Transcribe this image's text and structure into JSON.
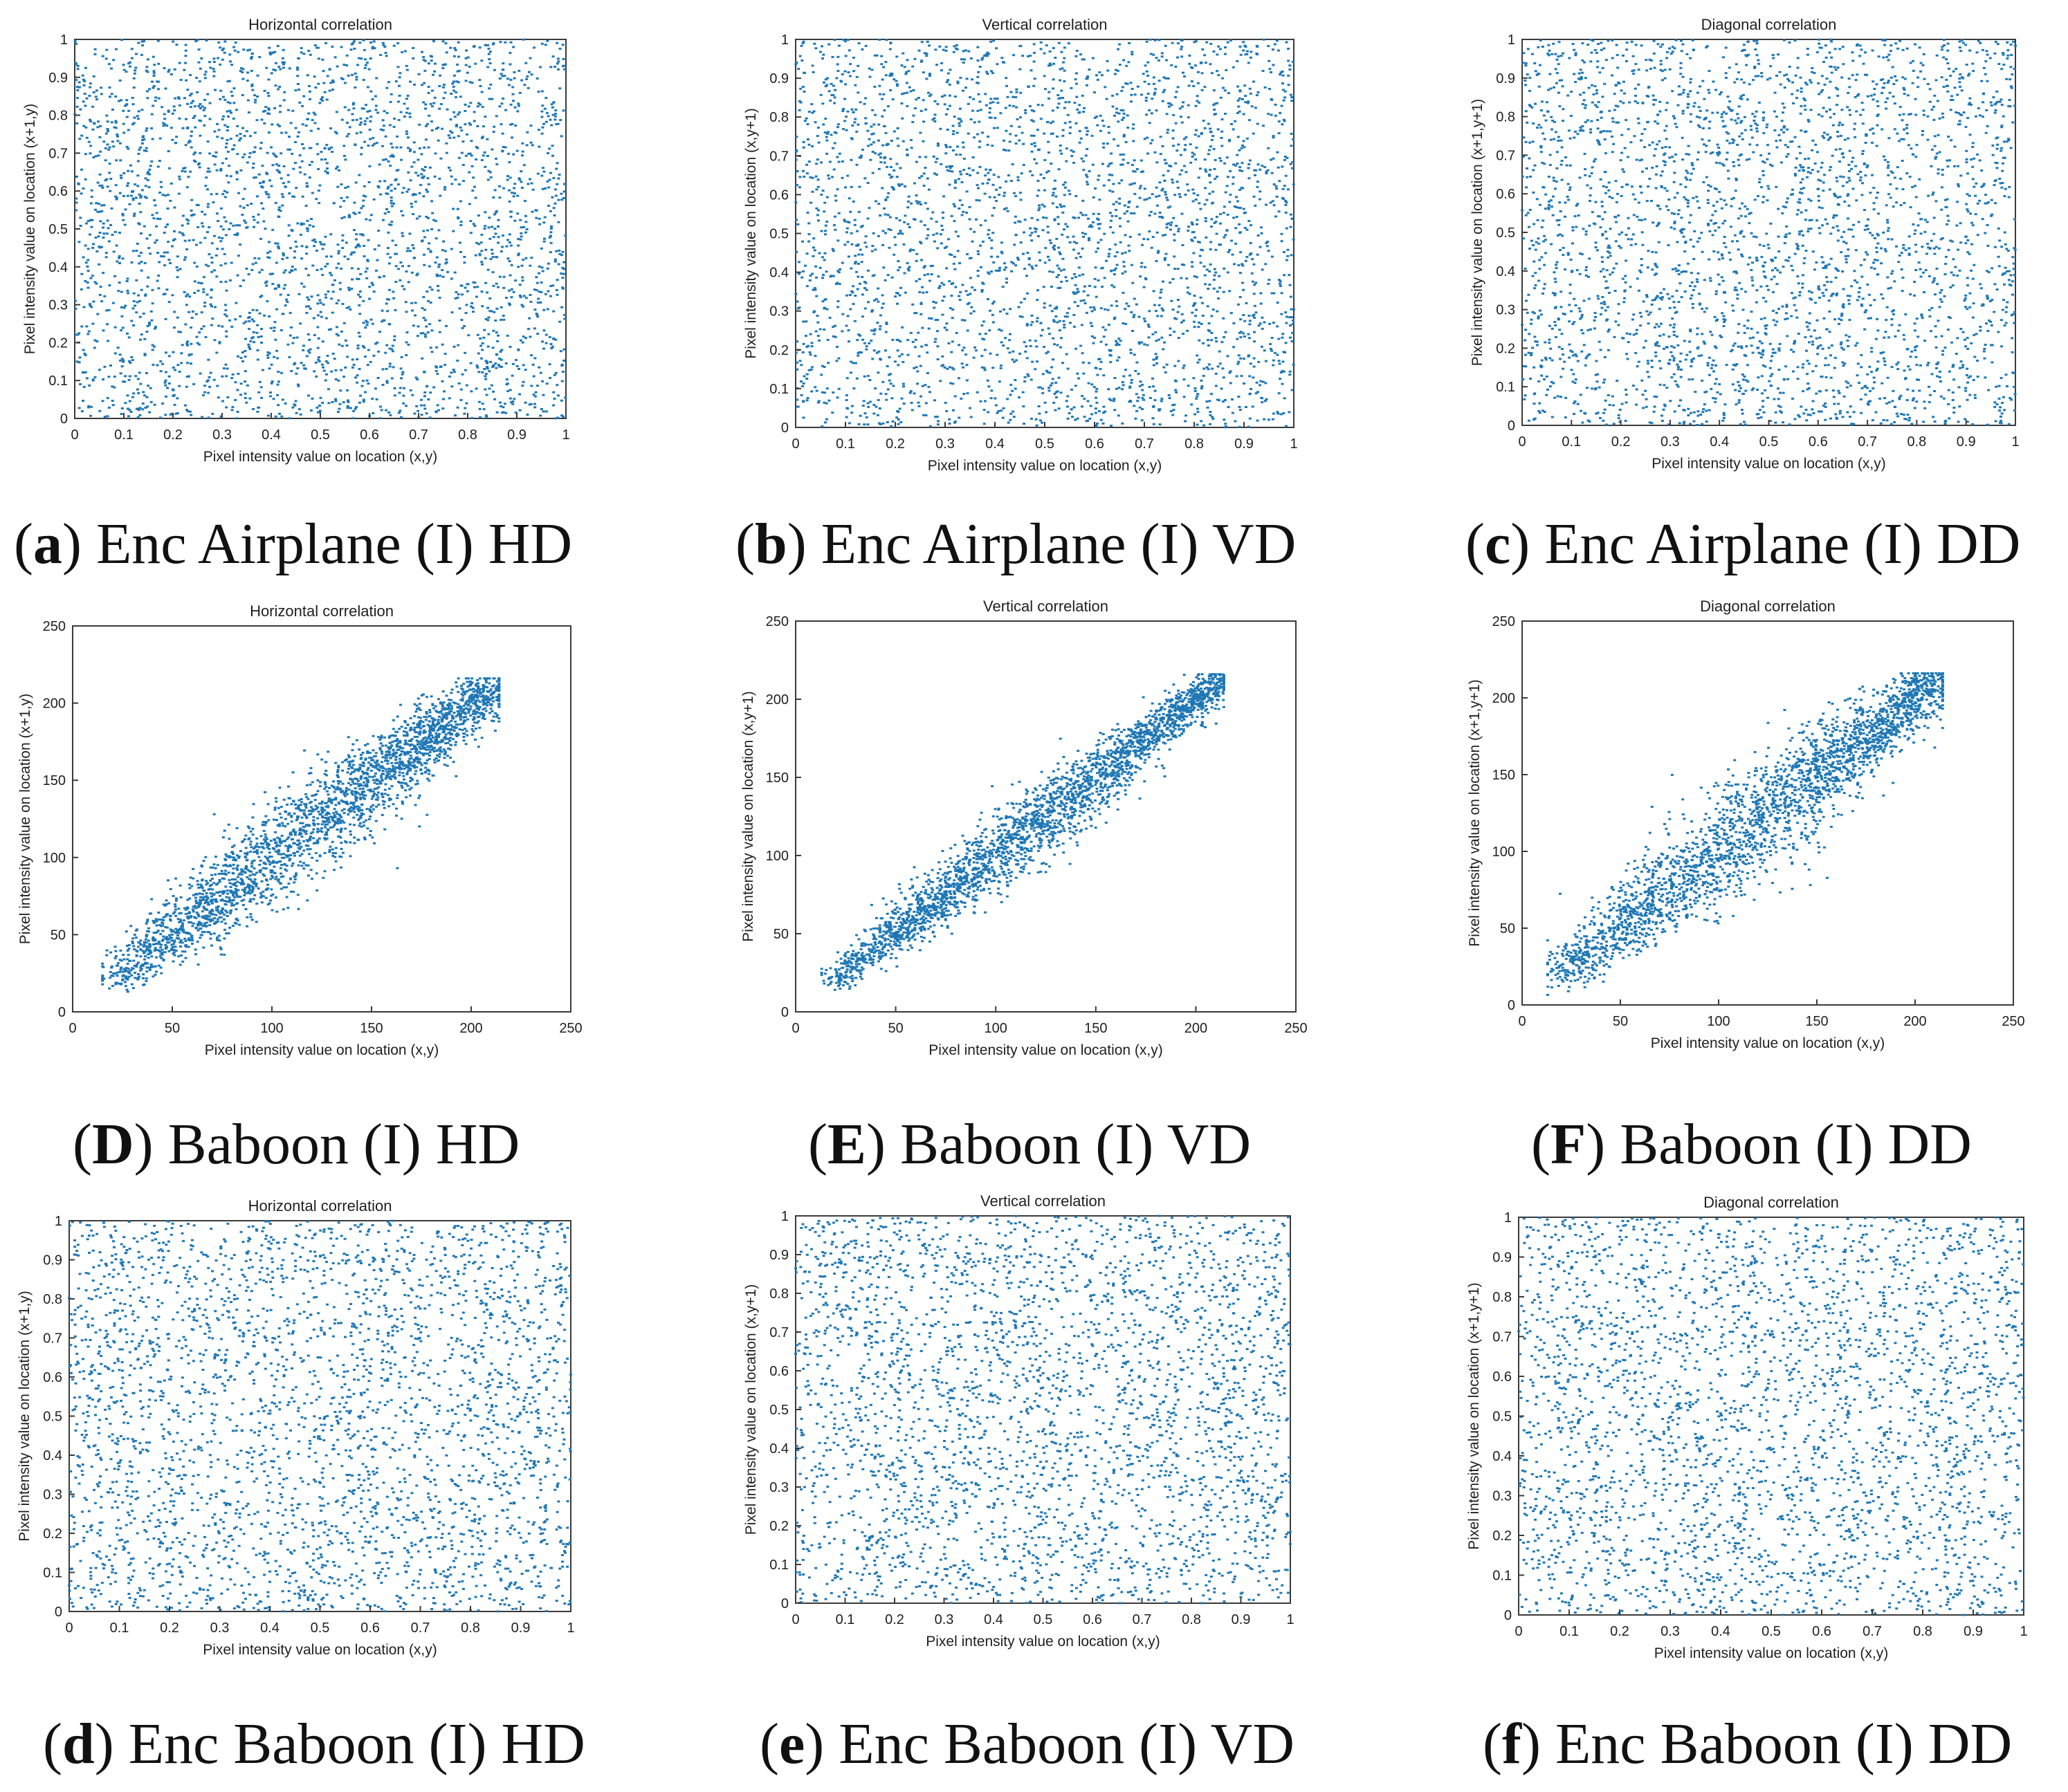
{
  "chart_data": [
    {
      "id": "a",
      "type": "scatter",
      "title": "Horizontal correlation",
      "xlabel": "Pixel intensity value on location (x,y)",
      "ylabel": "Pixel intensity value on location (x+1,y)",
      "xlim": [
        0,
        1
      ],
      "ylim": [
        0,
        1
      ],
      "xticks": [
        "0",
        "0.1",
        "0.2",
        "0.3",
        "0.4",
        "0.5",
        "0.6",
        "0.7",
        "0.8",
        "0.9",
        "1"
      ],
      "yticks": [
        "0",
        "0.1",
        "0.2",
        "0.3",
        "0.4",
        "0.5",
        "0.6",
        "0.7",
        "0.8",
        "0.9",
        "1"
      ],
      "distribution": "uniform",
      "point_count": 3000,
      "color": "#1f77b4",
      "caption": {
        "letter": "a",
        "text": "Enc Airplane (I) HD"
      }
    },
    {
      "id": "b",
      "type": "scatter",
      "title": "Vertical correlation",
      "xlabel": "Pixel intensity value on location (x,y)",
      "ylabel": "Pixel intensity value on location (x,y+1)",
      "xlim": [
        0,
        1
      ],
      "ylim": [
        0,
        1
      ],
      "xticks": [
        "0",
        "0.1",
        "0.2",
        "0.3",
        "0.4",
        "0.5",
        "0.6",
        "0.7",
        "0.8",
        "0.9",
        "1"
      ],
      "yticks": [
        "0",
        "0.1",
        "0.2",
        "0.3",
        "0.4",
        "0.5",
        "0.6",
        "0.7",
        "0.8",
        "0.9",
        "1"
      ],
      "distribution": "uniform",
      "point_count": 3000,
      "color": "#1f77b4",
      "caption": {
        "letter": "b",
        "text": "Enc Airplane (I) VD"
      }
    },
    {
      "id": "c",
      "type": "scatter",
      "title": "Diagonal correlation",
      "xlabel": "Pixel intensity value on location (x,y)",
      "ylabel": "Pixel intensity value on location (x+1,y+1)",
      "xlim": [
        0,
        1
      ],
      "ylim": [
        0,
        1
      ],
      "xticks": [
        "0",
        "0.1",
        "0.2",
        "0.3",
        "0.4",
        "0.5",
        "0.6",
        "0.7",
        "0.8",
        "0.9",
        "1"
      ],
      "yticks": [
        "0",
        "0.1",
        "0.2",
        "0.3",
        "0.4",
        "0.5",
        "0.6",
        "0.7",
        "0.8",
        "0.9",
        "1"
      ],
      "distribution": "uniform",
      "point_count": 3000,
      "color": "#1f77b4",
      "caption": {
        "letter": "c",
        "text": "Enc Airplane (I) DD"
      }
    },
    {
      "id": "D",
      "type": "scatter",
      "title": "Horizontal correlation",
      "xlabel": "Pixel intensity value on location (x,y)",
      "ylabel": "Pixel intensity value on location (x+1,y)",
      "xlim": [
        0,
        250
      ],
      "ylim": [
        0,
        250
      ],
      "xticks": [
        "0",
        "50",
        "100",
        "150",
        "200",
        "250"
      ],
      "yticks": [
        "0",
        "50",
        "100",
        "150",
        "200",
        "250"
      ],
      "distribution": "correlated",
      "point_count": 2600,
      "color": "#1f77b4",
      "range": [
        20,
        212
      ],
      "spread": 18,
      "caption": {
        "letter": "D",
        "text": "Baboon (I) HD"
      }
    },
    {
      "id": "E",
      "type": "scatter",
      "title": "Vertical correlation",
      "xlabel": "Pixel intensity value on location (x,y)",
      "ylabel": "Pixel intensity value on location (x,y+1)",
      "xlim": [
        0,
        250
      ],
      "ylim": [
        0,
        250
      ],
      "xticks": [
        "0",
        "50",
        "100",
        "150",
        "200",
        "250"
      ],
      "yticks": [
        "0",
        "50",
        "100",
        "150",
        "200",
        "250"
      ],
      "distribution": "correlated",
      "point_count": 2600,
      "color": "#1f77b4",
      "range": [
        18,
        212
      ],
      "spread": 13,
      "caption": {
        "letter": "E",
        "text": "Baboon (I) VD"
      }
    },
    {
      "id": "F",
      "type": "scatter",
      "title": "Diagonal correlation",
      "xlabel": "Pixel intensity value on location (x,y)",
      "ylabel": "Pixel intensity value on location (x+1,y+1)",
      "xlim": [
        0,
        250
      ],
      "ylim": [
        0,
        250
      ],
      "xticks": [
        "0",
        "50",
        "100",
        "150",
        "200",
        "250"
      ],
      "yticks": [
        "0",
        "50",
        "100",
        "150",
        "200",
        "250"
      ],
      "distribution": "correlated",
      "point_count": 2600,
      "color": "#1f77b4",
      "range": [
        18,
        212
      ],
      "spread": 20,
      "caption": {
        "letter": "F",
        "text": "Baboon (I) DD"
      }
    },
    {
      "id": "d",
      "type": "scatter",
      "title": "Horizontal correlation",
      "xlabel": "Pixel intensity value on location (x,y)",
      "ylabel": "Pixel intensity value on location (x+1,y)",
      "xlim": [
        0,
        1
      ],
      "ylim": [
        0,
        1
      ],
      "xticks": [
        "0",
        "0.1",
        "0.2",
        "0.3",
        "0.4",
        "0.5",
        "0.6",
        "0.7",
        "0.8",
        "0.9",
        "1"
      ],
      "yticks": [
        "0",
        "0.1",
        "0.2",
        "0.3",
        "0.4",
        "0.5",
        "0.6",
        "0.7",
        "0.8",
        "0.9",
        "1"
      ],
      "distribution": "uniform",
      "point_count": 3000,
      "color": "#1f77b4",
      "caption": {
        "letter": "d",
        "text": "Enc Baboon (I) HD"
      }
    },
    {
      "id": "e",
      "type": "scatter",
      "title": "Vertical correlation",
      "xlabel": "Pixel intensity value on location (x,y)",
      "ylabel": "Pixel intensity value on location (x,y+1)",
      "xlim": [
        0,
        1
      ],
      "ylim": [
        0,
        1
      ],
      "xticks": [
        "0",
        "0.1",
        "0.2",
        "0.3",
        "0.4",
        "0.5",
        "0.6",
        "0.7",
        "0.8",
        "0.9",
        "1"
      ],
      "yticks": [
        "0",
        "0.1",
        "0.2",
        "0.3",
        "0.4",
        "0.5",
        "0.6",
        "0.7",
        "0.8",
        "0.9",
        "1"
      ],
      "distribution": "uniform",
      "point_count": 3000,
      "color": "#1f77b4",
      "caption": {
        "letter": "e",
        "text": "Enc Baboon (I) VD"
      }
    },
    {
      "id": "f",
      "type": "scatter",
      "title": "Diagonal correlation",
      "xlabel": "Pixel intensity value on location (x,y)",
      "ylabel": "Pixel intensity value on location (x+1,y+1)",
      "xlim": [
        0,
        1
      ],
      "ylim": [
        0,
        1
      ],
      "xticks": [
        "0",
        "0.1",
        "0.2",
        "0.3",
        "0.4",
        "0.5",
        "0.6",
        "0.7",
        "0.8",
        "0.9",
        "1"
      ],
      "yticks": [
        "0",
        "0.1",
        "0.2",
        "0.3",
        "0.4",
        "0.5",
        "0.6",
        "0.7",
        "0.8",
        "0.9",
        "1"
      ],
      "distribution": "uniform",
      "point_count": 3000,
      "color": "#1f77b4",
      "caption": {
        "letter": "f",
        "text": "Enc Baboon (I) DD"
      }
    }
  ]
}
